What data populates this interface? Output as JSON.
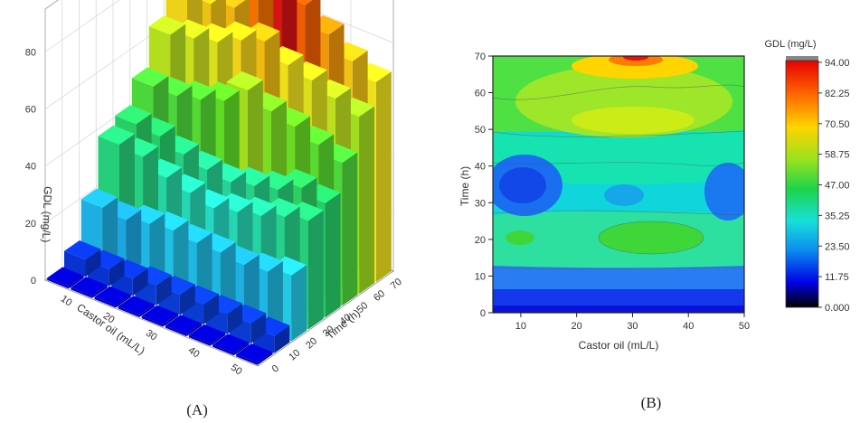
{
  "captions": {
    "a": "(A)",
    "b": "(B)"
  },
  "chart_data": [
    {
      "type": "bar3d",
      "xlabel": "Castor oil (mL/L)",
      "ylabel": "Time (h)",
      "zlabel": "GDL (mg/L)",
      "x_ticks": [
        "50",
        "40",
        "30",
        "20",
        "10"
      ],
      "y_ticks": [
        "0",
        "10",
        "20",
        "30",
        "40",
        "50",
        "60",
        "70"
      ],
      "z_ticks": [
        "0",
        "20",
        "40",
        "60",
        "80"
      ],
      "castor_oil": [
        10,
        15,
        20,
        25,
        30,
        35,
        40,
        45,
        50
      ],
      "time": [
        0,
        10,
        20,
        30,
        40,
        50,
        60,
        70
      ],
      "zlim": [
        0,
        95
      ],
      "grid": true,
      "values": [
        [
          0,
          0,
          0,
          0,
          0,
          0,
          0,
          0,
          0
        ],
        [
          6,
          7,
          7,
          7,
          7,
          7,
          6,
          6,
          6
        ],
        [
          23,
          21,
          20,
          21,
          21,
          22,
          21,
          19,
          20
        ],
        [
          38,
          36,
          33,
          31,
          29,
          31,
          33,
          37,
          38
        ],
        [
          40,
          42,
          38,
          36,
          34,
          35,
          37,
          40,
          41
        ],
        [
          50,
          53,
          56,
          58,
          62,
          55,
          52,
          50,
          50
        ],
        [
          62,
          65,
          68,
          70,
          75,
          72,
          68,
          66,
          64
        ],
        [
          70,
          74,
          80,
          87,
          94,
          85,
          76,
          74,
          72
        ]
      ]
    },
    {
      "type": "contour",
      "xlabel": "Castor oil (mL/L)",
      "ylabel": "Time (h)",
      "xlim": [
        5,
        50
      ],
      "ylim": [
        0,
        70
      ],
      "x_ticks": [
        "10",
        "20",
        "30",
        "40",
        "50"
      ],
      "y_ticks": [
        "0",
        "10",
        "20",
        "30",
        "40",
        "50",
        "60",
        "70"
      ],
      "colorbar": {
        "title": "GDL (mg/L)",
        "levels": [
          "94.00",
          "82.25",
          "70.50",
          "58.75",
          "47.00",
          "35.25",
          "23.50",
          "11.75",
          "0.000"
        ]
      }
    }
  ]
}
